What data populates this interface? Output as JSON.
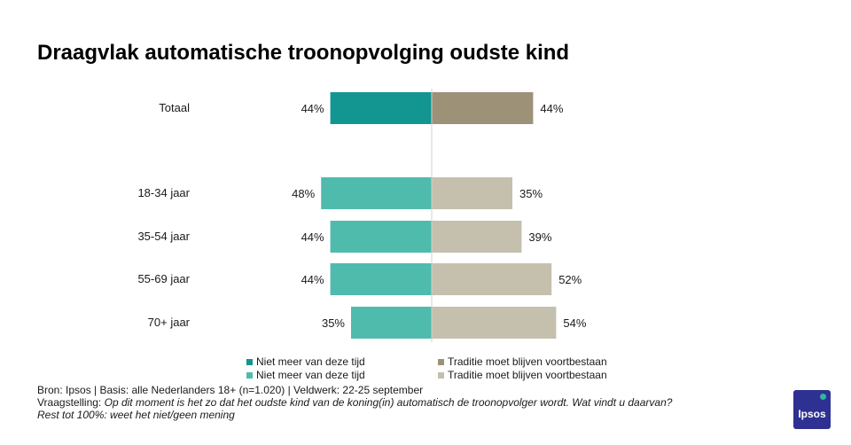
{
  "chart_data": {
    "type": "bar",
    "orientation": "horizontal-diverging",
    "title": "Draagvlak automatische troonopvolging oudste kind",
    "categories": [
      "Totaal",
      "18-34 jaar",
      "35-54 jaar",
      "55-69 jaar",
      "70+ jaar"
    ],
    "series": [
      {
        "name": "Niet meer van deze tijd",
        "values": [
          44,
          48,
          44,
          44,
          35
        ],
        "side": "left",
        "colors": [
          "#139592",
          "#4fbbad",
          "#4fbbad",
          "#4fbbad",
          "#4fbbad"
        ]
      },
      {
        "name": "Traditie moet blijven voortbestaan",
        "values": [
          44,
          35,
          39,
          52,
          54
        ],
        "side": "right",
        "colors": [
          "#9d9178",
          "#c5bfae",
          "#c5bfae",
          "#c5bfae",
          "#c5bfae"
        ]
      }
    ],
    "value_suffix": "%",
    "grid": false
  },
  "legend": {
    "entries": [
      {
        "label": "Niet meer van deze tijd",
        "color": "#139592"
      },
      {
        "label": "Traditie moet blijven voortbestaan",
        "color": "#9d9178"
      },
      {
        "label": "Niet meer van deze tijd",
        "color": "#4fbbad"
      },
      {
        "label": "Traditie moet blijven voortbestaan",
        "color": "#c5bfae"
      }
    ]
  },
  "footer": {
    "source": "Bron: Ipsos | Basis: alle Nederlanders  18+ (n=1.020) | Veldwerk: 22-25  september",
    "question_prefix": "Vraagstelling: ",
    "question": "Op dit moment is het zo dat het oudste kind van de koning(in) automatisch de troonopvolger wordt.  Wat vindt u daarvan?",
    "note": "Rest tot 100%: weet  het niet/geen mening"
  },
  "logo": {
    "text": "Ipsos",
    "color": "#2e3192",
    "accent": "#32b4a4"
  }
}
